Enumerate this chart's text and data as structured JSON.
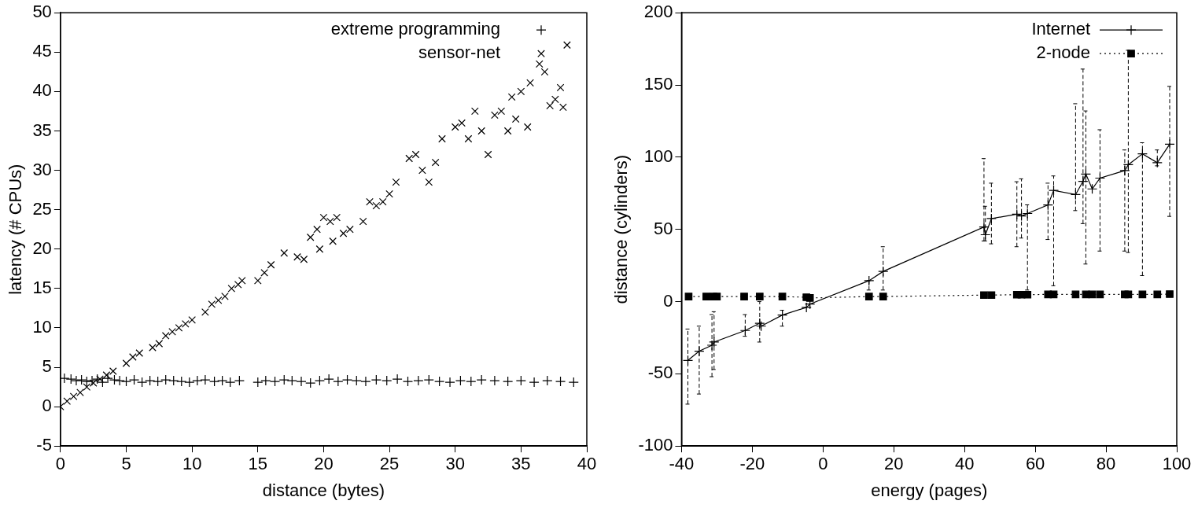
{
  "chart_data": [
    {
      "type": "scatter",
      "xlabel": "distance (bytes)",
      "ylabel": "latency (# CPUs)",
      "xlim": [
        0,
        40
      ],
      "ylim": [
        -5,
        50
      ],
      "xticks": [
        0,
        5,
        10,
        15,
        20,
        25,
        30,
        35,
        40
      ],
      "yticks": [
        -5,
        0,
        5,
        10,
        15,
        20,
        25,
        30,
        35,
        40,
        45,
        50
      ],
      "grid": false,
      "legend": "top right",
      "series": [
        {
          "name": "extreme programming",
          "color": "#000000",
          "marker": "cross",
          "x": [
            0.3,
            0.8,
            1.2,
            1.6,
            2.0,
            2.4,
            2.8,
            3.2,
            3.6,
            4.1,
            4.5,
            5.0,
            5.6,
            6.2,
            6.8,
            7.4,
            8.0,
            8.6,
            9.2,
            9.8,
            10.4,
            11.0,
            11.7,
            12.3,
            12.9,
            13.6,
            15.0,
            15.6,
            16.3,
            17.0,
            17.6,
            18.3,
            19.0,
            19.7,
            20.4,
            21.1,
            21.8,
            22.5,
            23.2,
            24.0,
            24.8,
            25.6,
            26.4,
            27.2,
            28.0,
            28.8,
            29.6,
            30.4,
            31.2,
            32.0,
            33.0,
            34.0,
            35.0,
            36.0,
            37.0,
            38.0,
            39.0
          ],
          "values": [
            3.6,
            3.5,
            3.3,
            3.4,
            3.2,
            3.3,
            3.5,
            3.1,
            3.6,
            3.4,
            3.3,
            3.2,
            3.4,
            3.1,
            3.3,
            3.2,
            3.4,
            3.3,
            3.2,
            3.1,
            3.3,
            3.4,
            3.2,
            3.3,
            3.1,
            3.3,
            3.1,
            3.3,
            3.2,
            3.4,
            3.3,
            3.2,
            3.0,
            3.3,
            3.5,
            3.2,
            3.4,
            3.3,
            3.2,
            3.4,
            3.3,
            3.5,
            3.2,
            3.3,
            3.4,
            3.2,
            3.1,
            3.3,
            3.2,
            3.4,
            3.3,
            3.2,
            3.3,
            3.1,
            3.3,
            3.2,
            3.1
          ]
        },
        {
          "name": "sensor-net",
          "color": "#000000",
          "marker": "x",
          "x": [
            0.0,
            0.5,
            1.0,
            1.5,
            2.0,
            2.5,
            3.0,
            3.5,
            4.0,
            5.0,
            5.5,
            6.0,
            7.0,
            7.5,
            8.0,
            8.5,
            9.0,
            9.5,
            10.0,
            11.0,
            11.5,
            12.0,
            12.5,
            13.0,
            13.5,
            13.8,
            15.0,
            15.5,
            16.0,
            17.0,
            18.0,
            18.5,
            19.0,
            19.5,
            20.0,
            20.5,
            21.0,
            19.7,
            20.7,
            21.5,
            22.0,
            23.0,
            23.5,
            24.0,
            24.5,
            25.0,
            25.5,
            26.5,
            27.0,
            27.5,
            28.0,
            28.5,
            29.0,
            30.0,
            30.5,
            31.0,
            31.5,
            32.0,
            32.5,
            33.0,
            33.5,
            34.0,
            34.3,
            34.6,
            35.0,
            35.5,
            35.7,
            36.4,
            36.8,
            37.2,
            37.6,
            38.0,
            38.2,
            38.5
          ],
          "values": [
            0.0,
            0.7,
            1.3,
            1.8,
            2.5,
            3.0,
            3.5,
            4.0,
            4.5,
            5.5,
            6.3,
            6.8,
            7.5,
            8.0,
            9.0,
            9.5,
            10.0,
            10.5,
            11.0,
            12.0,
            13.0,
            13.5,
            14.0,
            15.0,
            15.5,
            16.0,
            16.0,
            17.0,
            18.0,
            19.5,
            19.0,
            18.7,
            21.5,
            22.5,
            24.0,
            23.5,
            24.0,
            20.0,
            21.0,
            22.0,
            22.5,
            23.5,
            26.0,
            25.5,
            26.0,
            27.0,
            28.5,
            31.5,
            32.0,
            30.0,
            28.5,
            31.0,
            34.0,
            35.5,
            36.0,
            34.0,
            37.5,
            35.0,
            32.0,
            37.0,
            37.5,
            35.0,
            39.3,
            36.5,
            40.0,
            35.5,
            41.1,
            43.5,
            42.5,
            38.2,
            39.0,
            40.5,
            38.0,
            45.9
          ]
        }
      ]
    },
    {
      "type": "line",
      "xlabel": "energy (pages)",
      "ylabel": "distance (cylinders)",
      "xlim": [
        -40,
        100
      ],
      "ylim": [
        -100,
        200
      ],
      "xticks": [
        -40,
        -20,
        0,
        20,
        40,
        60,
        80,
        100
      ],
      "yticks": [
        -100,
        -50,
        0,
        50,
        100,
        150,
        200
      ],
      "grid": false,
      "legend": "top right",
      "series": [
        {
          "name": "Internet",
          "color": "#000000",
          "marker": "cross",
          "line_style": "solid",
          "x": [
            -38.2,
            -35,
            -31.4,
            -30.8,
            -22,
            -17.9,
            -17.5,
            -11.5,
            -4.7,
            -3.7,
            13,
            17,
            45.5,
            45.9,
            47.6,
            54.8,
            56.1,
            57.8,
            63.6,
            65.2,
            71.4,
            73.5,
            74.3,
            76.1,
            78.3,
            85.3,
            86.3,
            90.3,
            94.5,
            98
          ],
          "values": [
            -40.7,
            -34.3,
            -30.2,
            -28,
            -20,
            -15,
            -17,
            -9.3,
            -4,
            -1.7,
            14.5,
            20.9,
            51.7,
            46.3,
            57.5,
            60.5,
            59.3,
            61,
            66.9,
            77,
            74.1,
            83.3,
            88.3,
            78,
            85.5,
            90.7,
            94.8,
            102.3,
            96.2,
            109
          ],
          "errors": [
            [
              -71,
              -19
            ],
            [
              -64,
              -17
            ],
            [
              -52,
              -9
            ],
            [
              -47,
              -7
            ],
            [
              -24,
              -9
            ],
            [
              -28,
              0
            ],
            null,
            [
              -17,
              -6
            ],
            null,
            null,
            [
              8,
              14.5
            ],
            [
              8,
              38
            ],
            [
              42,
              99
            ],
            [
              42,
              66
            ],
            [
              40,
              82
            ],
            [
              38,
              83
            ],
            [
              44,
              85
            ],
            [
              8,
              67
            ],
            [
              43,
              82
            ],
            [
              11,
              87
            ],
            [
              63,
              137
            ],
            [
              54,
              161
            ],
            [
              26,
              132
            ],
            null,
            [
              35,
              119
            ],
            [
              35,
              105
            ],
            [
              34,
              174
            ],
            [
              18,
              110
            ],
            [
              94,
              105
            ],
            [
              59,
              149
            ]
          ]
        },
        {
          "name": "2-node",
          "color": "#000000",
          "marker": "square",
          "line_style": "dotted",
          "x": [
            -38,
            -33,
            -31,
            -30,
            -22.3,
            -17.9,
            -11.5,
            -4.7,
            -3.7,
            13,
            17,
            45.5,
            46.5,
            47.6,
            54.8,
            56.1,
            57.8,
            63.6,
            65.2,
            71.4,
            73.5,
            74.3,
            76.1,
            78.3,
            85.3,
            86.3,
            90.3,
            94.5,
            98
          ],
          "values": [
            3.5,
            3.5,
            3.5,
            3.5,
            3.5,
            3.5,
            3.5,
            3.0,
            2.5,
            3.5,
            3.5,
            4.5,
            null,
            4.5,
            4.8,
            4.8,
            4.8,
            5,
            5,
            5,
            null,
            5,
            5,
            5,
            5,
            5,
            5,
            5,
            5.2
          ]
        }
      ]
    }
  ]
}
